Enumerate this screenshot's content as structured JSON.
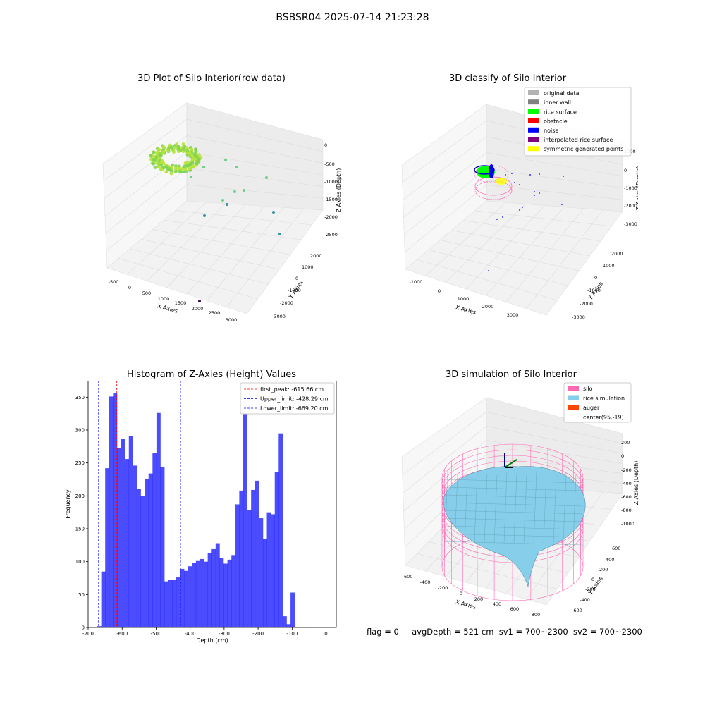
{
  "suptitle": "BSBSR04 2025-07-14 21:23:28",
  "footer": {
    "flag": "flag = 0",
    "avgDepth": "avgDepth = 521 cm",
    "sv1": "sv1 = 700~2300",
    "sv2": "sv2 = 700~2300"
  },
  "panels": {
    "raw": {
      "title": "3D Plot of Silo Interior(row data)",
      "xlabel": "X Axies",
      "ylabel": "Y Axies",
      "zlabel": "Z Axies (Depth)",
      "xticks": [
        "-500",
        "0",
        "500",
        "1000",
        "1500",
        "2000",
        "2500",
        "3000"
      ],
      "yticks": [
        "2000",
        "1000",
        "0",
        "-1000",
        "-2000",
        "-3000"
      ],
      "zticks": [
        "0",
        "-500",
        "-1000",
        "-1500",
        "-2000",
        "-2500"
      ]
    },
    "classify": {
      "title": "3D classify of Silo Interior",
      "xlabel": "X Axies",
      "ylabel": "Y Axies",
      "zlabel": "Z Axies (Depth)",
      "xticks": [
        "-1000",
        "0",
        "1000",
        "2000",
        "3000"
      ],
      "yticks": [
        "2000",
        "1000",
        "0",
        "-1000",
        "-2000",
        "-3000"
      ],
      "zticks": [
        "1000",
        "0",
        "-1000",
        "-2000",
        "-3000"
      ],
      "legend": [
        {
          "label": "original data",
          "color": "#b3b3b3"
        },
        {
          "label": "inner wall",
          "color": "#808080"
        },
        {
          "label": "rice surface",
          "color": "#00ff00"
        },
        {
          "label": "obstacle",
          "color": "#ff0000"
        },
        {
          "label": "noise",
          "color": "#0000ff"
        },
        {
          "label": "interpolated rice surface",
          "color": "#800080"
        },
        {
          "label": "symmetric generated points",
          "color": "#ffff00"
        }
      ]
    },
    "sim": {
      "title": "3D simulation of Silo Interior",
      "xlabel": "X Axies",
      "ylabel": "Y Axies",
      "zlabel": "Z Axies (Depth)",
      "xticks": [
        "-600",
        "-400",
        "-200",
        "0",
        "200",
        "400",
        "600",
        "800"
      ],
      "yticks": [
        "600",
        "400",
        "200",
        "0",
        "-200",
        "-400",
        "-600"
      ],
      "zticks": [
        "200",
        "0",
        "-200",
        "-400",
        "-600",
        "-800",
        "-1000"
      ],
      "legend": [
        {
          "label": "silo",
          "color": "#ff69b4"
        },
        {
          "label": "rice simulation",
          "color": "#87ceeb"
        },
        {
          "label": "auger",
          "color": "#ff4500"
        },
        {
          "label": "center(95,-19)",
          "color": "#ffffff"
        }
      ]
    }
  },
  "chart_data": {
    "type": "bar",
    "title": "Histogram of Z-Axies (Height) Values",
    "xlabel": "Depth (cm)",
    "ylabel": "Frequency",
    "xlim": [
      -700,
      30
    ],
    "ylim": [
      0,
      375
    ],
    "xticks": [
      -700,
      -600,
      -500,
      -400,
      -300,
      -200,
      -100,
      0
    ],
    "yticks": [
      0,
      50,
      100,
      150,
      200,
      250,
      300,
      350
    ],
    "bar_color": "#0000ff",
    "bar_opacity": 0.7,
    "bins": {
      "start": -673,
      "width": 11.6,
      "counts": [
        2,
        85,
        242,
        351,
        356,
        273,
        287,
        256,
        291,
        246,
        210,
        200,
        226,
        234,
        265,
        326,
        244,
        70,
        72,
        72,
        76,
        89,
        86,
        93,
        98,
        101,
        104,
        100,
        113,
        119,
        128,
        105,
        97,
        103,
        110,
        187,
        208,
        327,
        178,
        209,
        223,
        166,
        135,
        175,
        172,
        236,
        295,
        17,
        5,
        53
      ]
    },
    "vlines": [
      {
        "label": "first_peak: -615.66 cm",
        "x": -615.66,
        "color": "#ff0000"
      },
      {
        "label": "Upper_limit: -428.29 cm",
        "x": -428.29,
        "color": "#0000ff"
      },
      {
        "label": "Lower_limit: -669.20 cm",
        "x": -669.2,
        "color": "#0000ff"
      }
    ],
    "legend_position": "top-right"
  }
}
